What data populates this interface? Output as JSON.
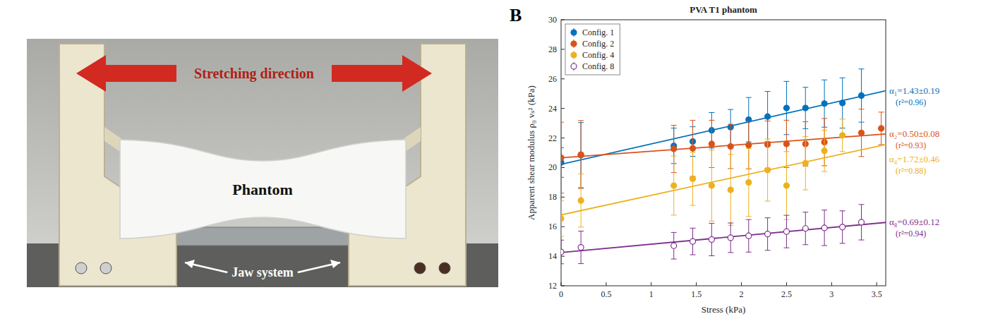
{
  "photo": {
    "stretching_label": "Stretching direction",
    "phantom_label": "Phantom",
    "jaw_label": "Jaw system"
  },
  "chart_data": {
    "type": "scatter",
    "panel_label": "B",
    "title": "PVA T1 phantom",
    "x_label": "Stress (kPa)",
    "y_label": "Apparent shear modulus ρ₀ vₛ² (kPa)",
    "xlim": [
      0,
      3.6
    ],
    "xticks": [
      0,
      0.5,
      1,
      1.5,
      2,
      2.5,
      3,
      3.5
    ],
    "ylim": [
      12,
      30
    ],
    "yticks": [
      12,
      14,
      16,
      18,
      20,
      22,
      24,
      26,
      28,
      30
    ],
    "grid": false,
    "legend": "upper left",
    "series": [
      {
        "name": "Config. 1",
        "color": "#0072bd",
        "marker": "circle",
        "x": [
          0,
          0.22,
          1.25,
          1.46,
          1.67,
          1.88,
          2.08,
          2.29,
          2.5,
          2.71,
          2.92,
          3.12,
          3.33
        ],
        "values": [
          20.34,
          20.84,
          21.47,
          21.76,
          22.52,
          22.73,
          23.24,
          23.45,
          24.03,
          24.03,
          24.33,
          24.37,
          24.87
        ],
        "errors": [
          1.0,
          2.2,
          1.2,
          1.0,
          1.2,
          1.2,
          1.5,
          1.7,
          1.8,
          1.4,
          1.6,
          1.7,
          1.8
        ]
      },
      {
        "name": "Config. 2",
        "color": "#d95319",
        "marker": "circle",
        "x": [
          0,
          0.22,
          1.25,
          1.46,
          1.67,
          1.88,
          2.08,
          2.29,
          2.5,
          2.71,
          2.92,
          3.33,
          3.55
        ],
        "values": [
          20.67,
          20.88,
          21.26,
          21.3,
          21.6,
          21.43,
          21.51,
          21.55,
          21.6,
          21.6,
          21.72,
          22.35,
          22.65
        ],
        "errors": [
          2.4,
          2.3,
          1.6,
          1.9,
          1.6,
          1.5,
          1.6,
          1.6,
          1.6,
          1.5,
          1.6,
          1.6,
          1.1
        ]
      },
      {
        "name": "Config. 4",
        "color": "#edb120",
        "marker": "circle",
        "x": [
          0,
          0.22,
          1.25,
          1.46,
          1.67,
          1.88,
          2.08,
          2.29,
          2.5,
          2.71,
          2.92,
          3.12
        ],
        "values": [
          16.55,
          17.77,
          18.78,
          19.24,
          18.78,
          18.49,
          18.99,
          19.83,
          18.78,
          20.29,
          21.13,
          22.18
        ],
        "errors": [
          1.2,
          1.8,
          2.0,
          1.8,
          2.4,
          2.4,
          2.3,
          2.1,
          2.3,
          1.8,
          1.4,
          1.1
        ]
      },
      {
        "name": "Config. 8",
        "color": "#7e2f8e",
        "marker": "circle-open",
        "x": [
          0,
          0.22,
          1.25,
          1.46,
          1.67,
          1.88,
          2.08,
          2.29,
          2.5,
          2.71,
          2.92,
          3.12,
          3.33
        ],
        "values": [
          14.29,
          14.6,
          14.71,
          15.0,
          15.13,
          15.25,
          15.38,
          15.5,
          15.67,
          15.88,
          15.92,
          15.97,
          16.3
        ],
        "errors": [
          0.8,
          1.1,
          0.9,
          0.9,
          1.1,
          1.0,
          1.1,
          1.1,
          1.1,
          1.1,
          1.2,
          1.1,
          1.2
        ]
      }
    ],
    "annotations": [
      [
        "α₁=1.43±0.19",
        "(r²=0.96)"
      ],
      [
        "α₂=0.50±0.08",
        "(r²=0.93)"
      ],
      [
        "α₄=1.72±0.46",
        "(r²=0.88)"
      ],
      [
        "α₈=0.69±0.12",
        "(r²=0.94)"
      ]
    ]
  }
}
